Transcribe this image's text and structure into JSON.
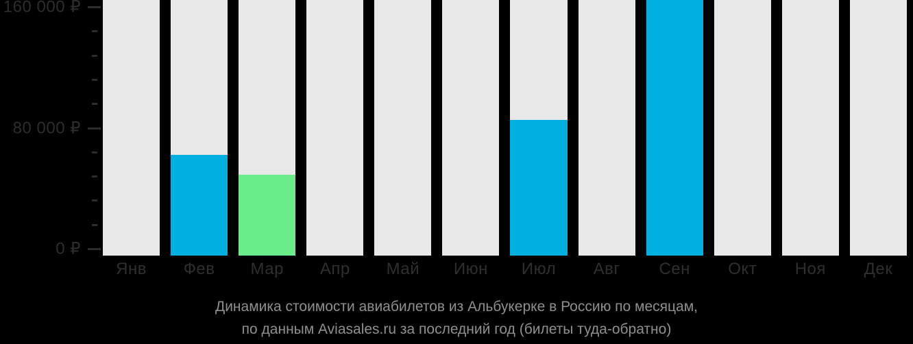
{
  "chart_data": {
    "type": "bar",
    "title": "Динамика стоимости авиабилетов из Альбукерке в Россию по месяцам,",
    "subtitle": "по данным Aviasales.ru за последний год (билеты туда-обратно)",
    "categories": [
      "Янв",
      "Фев",
      "Мар",
      "Апр",
      "Май",
      "Июн",
      "Июл",
      "Авг",
      "Сен",
      "Окт",
      "Ноя",
      "Дек"
    ],
    "values": [
      null,
      62000,
      49000,
      null,
      null,
      null,
      85000,
      null,
      165000,
      null,
      null,
      null
    ],
    "bar_color_keys": [
      null,
      "blue",
      "green",
      null,
      null,
      null,
      "blue",
      null,
      "blue",
      null,
      null,
      null
    ],
    "clipped_at_top": [
      "Сен"
    ],
    "min_price_month": "Мар",
    "currency": "₽",
    "y_ticks": [
      {
        "value": 0,
        "label": "0 ₽"
      },
      {
        "value": 80000,
        "label": "80 000 ₽"
      },
      {
        "value": 160000,
        "label": "160 000 ₽"
      }
    ],
    "y_minor_step": 16000,
    "ylim": [
      0,
      160000
    ],
    "grid": false,
    "legend": "none",
    "colors": {
      "blue": "#00b0e0",
      "green": "#68ed8a",
      "column_bg": "#e8e8e8",
      "axis_text": "#2d2d2d",
      "caption_text": "#8f8f8f",
      "background": "#000000"
    }
  }
}
